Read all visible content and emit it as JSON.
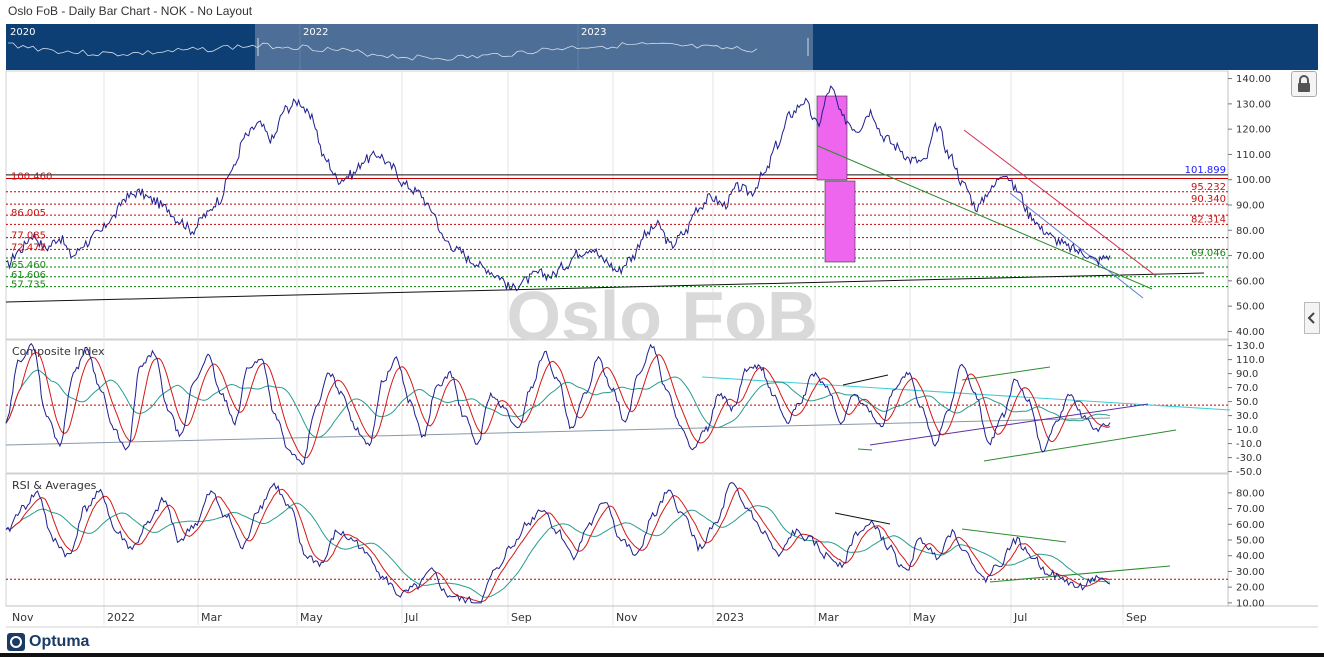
{
  "window": {
    "title": "Oslo FoB - Daily Bar Chart - NOK - No Layout"
  },
  "navigator": {
    "year_labels": [
      "2020",
      "2022",
      "2023"
    ]
  },
  "watermark": "Oslo FoB",
  "logo": {
    "text": "Optuma"
  },
  "icons": {
    "lock": "lock-icon",
    "collapse": "chevron-left-icon",
    "logo_mark": "optuma-logo-icon"
  },
  "colors": {
    "price_line": "#1f1f8f",
    "resistance_level": "#cc0000",
    "support_level": "#008000",
    "highlight_box": "#ee66ee",
    "ma_red": "#d21a1a",
    "ma_teal": "#2a9d8f",
    "navigator_bg": "#0d3e74"
  },
  "chart_data": [
    {
      "type": "line",
      "name": "price",
      "x_tick_labels": [
        "Nov",
        "2022",
        "Mar",
        "May",
        "Jul",
        "Sep",
        "Nov",
        "2023",
        "Mar",
        "May",
        "Jul",
        "Sep"
      ],
      "y_ticks": [
        "140.00",
        "130.00",
        "120.00",
        "110.00",
        "100.00",
        "90.00",
        "80.00",
        "70.00",
        "60.00",
        "50.00",
        "40.00"
      ],
      "ylim": [
        37,
        143
      ],
      "price_box_labels": [
        "101.899",
        "95.232",
        "90.340",
        "82.314",
        "69.046"
      ],
      "left_levels": [
        {
          "label": "100.460",
          "value": 100.46,
          "color": "red"
        },
        {
          "label": "86.005",
          "value": 86.005,
          "color": "red"
        },
        {
          "label": "77.085",
          "value": 77.085,
          "color": "red"
        },
        {
          "label": "72.472",
          "value": 72.472,
          "color": "red"
        },
        {
          "label": "65.460",
          "value": 65.46,
          "color": "green"
        },
        {
          "label": "61.606",
          "value": 61.606,
          "color": "green"
        },
        {
          "label": "57.735",
          "value": 57.735,
          "color": "green"
        }
      ],
      "right_levels": [
        {
          "label": "101.899",
          "value": 101.899,
          "color": "blue"
        },
        {
          "label": "95.232",
          "value": 95.232,
          "color": "red"
        },
        {
          "label": "90.340",
          "value": 90.34,
          "color": "red"
        },
        {
          "label": "82.314",
          "value": 82.314,
          "color": "red"
        },
        {
          "label": "69.046",
          "value": 69.046,
          "color": "green"
        }
      ],
      "values": [
        66,
        72,
        78,
        73,
        77,
        70,
        75,
        79,
        85,
        93,
        95,
        92,
        89,
        84,
        80,
        86,
        92,
        104,
        117,
        122,
        116,
        128,
        131,
        124,
        108,
        100,
        102,
        108,
        110,
        105,
        98,
        95,
        88,
        76,
        72,
        68,
        65,
        62,
        57,
        60,
        63,
        62,
        66,
        71,
        73,
        68,
        64,
        69,
        78,
        82,
        74,
        79,
        89,
        93,
        90,
        97,
        95,
        102,
        114,
        126,
        131,
        122,
        136,
        124,
        120,
        127,
        117,
        113,
        108,
        107,
        121,
        109,
        98,
        89,
        96,
        103,
        96,
        86,
        80,
        76,
        73,
        71,
        68,
        70
      ]
    },
    {
      "type": "line",
      "name": "Composite Index",
      "title": "Composite Index",
      "y_ticks": [
        "130.0",
        "110.0",
        "90.0",
        "70.0",
        "50.0",
        "30.0",
        "10.0",
        "-10.0",
        "-30.0",
        "-50.0"
      ],
      "ylim": [
        -52,
        138
      ],
      "reference_level": 45,
      "values": [
        20,
        110,
        130,
        30,
        -10,
        90,
        125,
        70,
        10,
        -20,
        100,
        120,
        40,
        0,
        80,
        115,
        60,
        20,
        100,
        110,
        30,
        -20,
        -40,
        40,
        90,
        60,
        10,
        -10,
        80,
        110,
        50,
        0,
        70,
        90,
        30,
        -10,
        60,
        40,
        10,
        70,
        120,
        80,
        10,
        60,
        110,
        70,
        20,
        90,
        130,
        70,
        20,
        -20,
        10,
        60,
        40,
        95,
        100,
        60,
        20,
        50,
        90,
        70,
        20,
        60,
        40,
        15,
        70,
        90,
        40,
        -10,
        40,
        100,
        60,
        -10,
        30,
        80,
        50,
        -20,
        20,
        60,
        30,
        10,
        20
      ]
    },
    {
      "type": "line",
      "name": "RSI & Averages",
      "title": "RSI & Averages",
      "y_ticks": [
        "80.00",
        "70.00",
        "60.00",
        "50.00",
        "40.00",
        "30.00",
        "20.00",
        "10.00"
      ],
      "ylim": [
        8,
        92
      ],
      "reference_level": 25,
      "values": [
        55,
        70,
        80,
        50,
        40,
        70,
        80,
        55,
        45,
        60,
        75,
        50,
        60,
        80,
        65,
        45,
        70,
        85,
        70,
        40,
        35,
        55,
        50,
        40,
        25,
        15,
        20,
        30,
        15,
        12,
        10,
        30,
        45,
        60,
        70,
        55,
        40,
        60,
        75,
        50,
        40,
        65,
        80,
        65,
        45,
        60,
        85,
        70,
        55,
        40,
        55,
        50,
        40,
        35,
        55,
        60,
        45,
        30,
        50,
        40,
        55,
        40,
        25,
        35,
        50,
        40,
        30,
        25,
        20,
        25,
        22
      ]
    }
  ]
}
